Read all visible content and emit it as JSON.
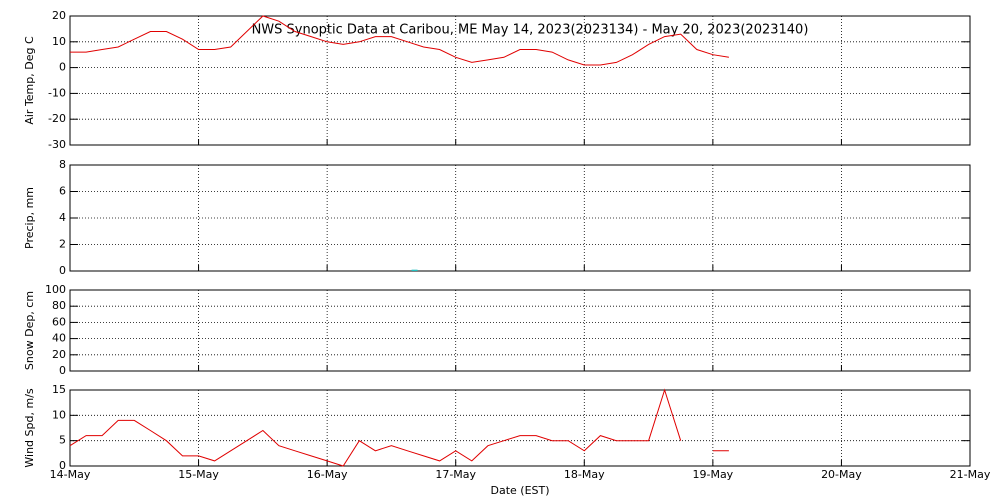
{
  "chart_data": [
    {
      "type": "line",
      "title": "NWS Synoptic Data at Caribou, ME   May 14, 2023(2023134) - May 20, 2023(2023140)",
      "ylabel": "Air Temp, Deg C",
      "color": "#e00000",
      "grid": true,
      "xlim": [
        0,
        7
      ],
      "ylim": [
        -30,
        20
      ],
      "yticks": [
        -30,
        -20,
        -10,
        0,
        10,
        20
      ],
      "x": [
        0,
        0.125,
        0.25,
        0.375,
        0.5,
        0.625,
        0.75,
        0.875,
        1,
        1.125,
        1.25,
        1.375,
        1.5,
        1.625,
        1.75,
        1.875,
        2,
        2.125,
        2.25,
        2.375,
        2.5,
        2.625,
        2.75,
        2.875,
        3,
        3.125,
        3.25,
        3.375,
        3.5,
        3.625,
        3.75,
        3.875,
        4,
        4.125,
        4.25,
        4.375,
        4.5,
        4.625,
        4.75,
        4.875,
        5,
        5.125
      ],
      "values": [
        6,
        6,
        7,
        8,
        11,
        14,
        14,
        11,
        7,
        7,
        8,
        14,
        20,
        18,
        14,
        12,
        10,
        9,
        10,
        12,
        12,
        10,
        8,
        7,
        4,
        2,
        3,
        4,
        7,
        7,
        6,
        3,
        1,
        1,
        2,
        5,
        9,
        12,
        13,
        7,
        5,
        4
      ]
    },
    {
      "type": "bar",
      "ylabel": "Precip, mm",
      "color": "#20c0c0",
      "grid": true,
      "xlim": [
        0,
        7
      ],
      "ylim": [
        0,
        8
      ],
      "yticks": [
        0,
        2,
        4,
        6,
        8
      ],
      "x": [
        2.68
      ],
      "values": [
        0.1
      ]
    },
    {
      "type": "line",
      "ylabel": "Snow Dep, cm",
      "grid": true,
      "xlim": [
        0,
        7
      ],
      "ylim": [
        0,
        100
      ],
      "yticks": [
        0,
        20,
        40,
        60,
        80,
        100
      ]
    },
    {
      "type": "line",
      "ylabel": "Wind Spd, m/s",
      "xlabel": "Date (EST)",
      "color": "#e00000",
      "grid": true,
      "xlim": [
        0,
        7
      ],
      "ylim": [
        0,
        15
      ],
      "yticks": [
        0,
        5,
        10,
        15
      ],
      "xticks": [
        {
          "value": 0,
          "label": "14-May"
        },
        {
          "value": 1,
          "label": "15-May"
        },
        {
          "value": 2,
          "label": "16-May"
        },
        {
          "value": 3,
          "label": "17-May"
        },
        {
          "value": 4,
          "label": "18-May"
        },
        {
          "value": 5,
          "label": "19-May"
        },
        {
          "value": 6,
          "label": "20-May"
        },
        {
          "value": 7,
          "label": "21-May"
        }
      ],
      "x": [
        0,
        0.125,
        0.25,
        0.375,
        0.5,
        0.625,
        0.75,
        0.875,
        1,
        1.125,
        1.25,
        1.375,
        1.5,
        1.625,
        1.75,
        1.875,
        2,
        2.125,
        2.25,
        2.375,
        2.5,
        2.625,
        2.75,
        2.875,
        3,
        3.125,
        3.25,
        3.375,
        3.5,
        3.625,
        3.75,
        3.875,
        4,
        4.125,
        4.25,
        4.375,
        4.5,
        4.625,
        4.75,
        4.875,
        5,
        5.125
      ],
      "values": [
        4,
        6,
        6,
        9,
        9,
        7,
        5,
        2,
        2,
        1,
        3,
        5,
        7,
        4,
        3,
        2,
        1,
        0,
        5,
        3,
        4,
        3,
        2,
        1,
        3,
        1,
        4,
        5,
        6,
        6,
        5,
        5,
        3,
        6,
        5,
        5,
        5,
        15,
        5,
        null,
        3,
        3
      ]
    }
  ]
}
